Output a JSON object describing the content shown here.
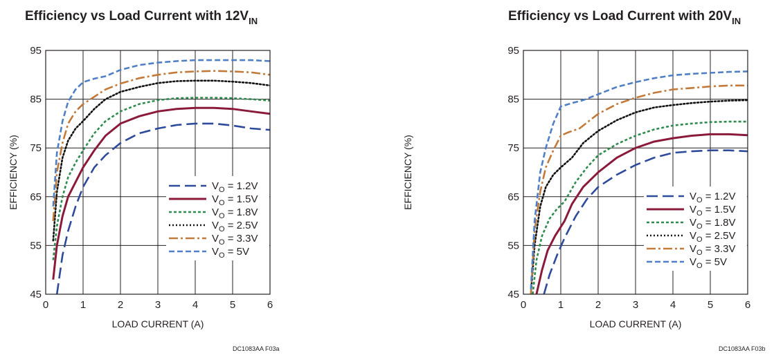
{
  "chart_data": [
    {
      "type": "line",
      "title_main": "Efficiency vs Load Current with 12V",
      "title_sub": "IN",
      "xlabel": "LOAD CURRENT (A)",
      "ylabel": "EFFICIENCY (%)",
      "xlim": [
        0,
        6
      ],
      "ylim": [
        45,
        95
      ],
      "xticks": [
        0,
        1,
        2,
        3,
        4,
        5,
        6
      ],
      "yticks": [
        45,
        55,
        65,
        75,
        85,
        95
      ],
      "grid": true,
      "legend_position": "bottom-right",
      "figure_code": "DC1083AA F03a",
      "series": [
        {
          "label_main": "V",
          "label_sub": "O",
          "label_rest": " = 1.2V",
          "color": "#2e4a9a",
          "dash": "long-dash",
          "points": [
            [
              0.3,
              45
            ],
            [
              0.45,
              53
            ],
            [
              0.6,
              58
            ],
            [
              0.8,
              63
            ],
            [
              1.0,
              67
            ],
            [
              1.3,
              71
            ],
            [
              1.6,
              73.5
            ],
            [
              2.0,
              76
            ],
            [
              2.5,
              78
            ],
            [
              3.0,
              79
            ],
            [
              3.5,
              79.7
            ],
            [
              4.0,
              80
            ],
            [
              4.5,
              80
            ],
            [
              5.0,
              79.6
            ],
            [
              5.5,
              79
            ],
            [
              6.0,
              78.7
            ]
          ]
        },
        {
          "label_main": "V",
          "label_sub": "O",
          "label_rest": " = 1.5V",
          "color": "#8b1a3a",
          "dash": "solid",
          "points": [
            [
              0.2,
              48
            ],
            [
              0.3,
              55
            ],
            [
              0.45,
              61
            ],
            [
              0.6,
              65
            ],
            [
              0.8,
              68
            ],
            [
              1.0,
              71
            ],
            [
              1.3,
              74.5
            ],
            [
              1.6,
              77.5
            ],
            [
              2.0,
              80
            ],
            [
              2.5,
              81.5
            ],
            [
              3.0,
              82.5
            ],
            [
              3.5,
              83
            ],
            [
              4.0,
              83.2
            ],
            [
              4.5,
              83.2
            ],
            [
              5.0,
              83
            ],
            [
              5.5,
              82.5
            ],
            [
              6.0,
              82
            ]
          ]
        },
        {
          "label_main": "V",
          "label_sub": "O",
          "label_rest": " = 1.8V",
          "color": "#2e8b4e",
          "dash": "short-dash",
          "points": [
            [
              0.2,
              52
            ],
            [
              0.3,
              59
            ],
            [
              0.45,
              65
            ],
            [
              0.6,
              69
            ],
            [
              0.8,
              72
            ],
            [
              1.0,
              74.5
            ],
            [
              1.3,
              78
            ],
            [
              1.6,
              80.5
            ],
            [
              2.0,
              82.5
            ],
            [
              2.5,
              84
            ],
            [
              3.0,
              84.8
            ],
            [
              3.5,
              85.2
            ],
            [
              4.0,
              85.3
            ],
            [
              4.5,
              85.3
            ],
            [
              5.0,
              85.2
            ],
            [
              5.5,
              85
            ],
            [
              6.0,
              84.7
            ]
          ]
        },
        {
          "label_main": "V",
          "label_sub": "O",
          "label_rest": " = 2.5V",
          "color": "#111111",
          "dash": "dot",
          "points": [
            [
              0.2,
              56
            ],
            [
              0.3,
              66
            ],
            [
              0.45,
              73
            ],
            [
              0.6,
              76.5
            ],
            [
              0.8,
              79
            ],
            [
              1.0,
              80.5
            ],
            [
              1.3,
              83
            ],
            [
              1.6,
              85
            ],
            [
              2.0,
              86.5
            ],
            [
              2.5,
              87.5
            ],
            [
              3.0,
              88.3
            ],
            [
              3.5,
              88.7
            ],
            [
              4.0,
              88.8
            ],
            [
              4.5,
              88.8
            ],
            [
              5.0,
              88.6
            ],
            [
              5.5,
              88.3
            ],
            [
              6.0,
              87.8
            ]
          ]
        },
        {
          "label_main": "V",
          "label_sub": "O",
          "label_rest": " = 3.3V",
          "color": "#c27a3a",
          "dash": "dash-dot",
          "points": [
            [
              0.2,
              60
            ],
            [
              0.3,
              70
            ],
            [
              0.45,
              76
            ],
            [
              0.6,
              80
            ],
            [
              0.8,
              82.5
            ],
            [
              1.0,
              84
            ],
            [
              1.3,
              85.5
            ],
            [
              1.6,
              87
            ],
            [
              2.0,
              88.2
            ],
            [
              2.5,
              89.3
            ],
            [
              3.0,
              90
            ],
            [
              3.5,
              90.5
            ],
            [
              4.0,
              90.7
            ],
            [
              4.5,
              90.8
            ],
            [
              5.0,
              90.7
            ],
            [
              5.5,
              90.5
            ],
            [
              6.0,
              90
            ]
          ]
        },
        {
          "label_main": "V",
          "label_sub": "O",
          "label_rest": " = 5V",
          "color": "#4f7fc4",
          "dash": "medium-dash",
          "points": [
            [
              0.2,
              63
            ],
            [
              0.3,
              74
            ],
            [
              0.45,
              80.5
            ],
            [
              0.6,
              84.5
            ],
            [
              0.8,
              87
            ],
            [
              1.0,
              88.5
            ],
            [
              1.3,
              89.2
            ],
            [
              1.6,
              89.7
            ],
            [
              2.0,
              91
            ],
            [
              2.5,
              92
            ],
            [
              3.0,
              92.5
            ],
            [
              3.5,
              92.8
            ],
            [
              4.0,
              93
            ],
            [
              4.5,
              93
            ],
            [
              5.0,
              93
            ],
            [
              5.5,
              93
            ],
            [
              6.0,
              92.8
            ]
          ]
        }
      ]
    },
    {
      "type": "line",
      "title_main": "Efficiency vs Load Current with 20V",
      "title_sub": "IN",
      "xlabel": "LOAD CURRENT (A)",
      "ylabel": "EFFICIENCY (%)",
      "xlim": [
        0,
        6
      ],
      "ylim": [
        45,
        95
      ],
      "xticks": [
        0,
        1,
        2,
        3,
        4,
        5,
        6
      ],
      "yticks": [
        45,
        55,
        65,
        75,
        85,
        95
      ],
      "grid": true,
      "legend_position": "bottom-right",
      "figure_code": "DC1083AA F03b",
      "series": [
        {
          "label_main": "V",
          "label_sub": "O",
          "label_rest": " = 1.2V",
          "color": "#2e4a9a",
          "dash": "long-dash",
          "points": [
            [
              0.55,
              45
            ],
            [
              0.7,
              49
            ],
            [
              0.9,
              53
            ],
            [
              1.1,
              56.5
            ],
            [
              1.4,
              61
            ],
            [
              1.7,
              64.5
            ],
            [
              2.0,
              67
            ],
            [
              2.5,
              69.5
            ],
            [
              3.0,
              71.5
            ],
            [
              3.5,
              73
            ],
            [
              4.0,
              74
            ],
            [
              4.5,
              74.3
            ],
            [
              5.0,
              74.5
            ],
            [
              5.5,
              74.5
            ],
            [
              6.0,
              74.3
            ]
          ]
        },
        {
          "label_main": "V",
          "label_sub": "O",
          "label_rest": " = 1.5V",
          "color": "#8b1a3a",
          "dash": "solid",
          "points": [
            [
              0.35,
              45
            ],
            [
              0.5,
              50
            ],
            [
              0.65,
              54
            ],
            [
              0.85,
              57
            ],
            [
              1.1,
              60
            ],
            [
              1.3,
              63.5
            ],
            [
              1.6,
              67
            ],
            [
              2.0,
              70
            ],
            [
              2.5,
              73
            ],
            [
              3.0,
              75
            ],
            [
              3.5,
              76.3
            ],
            [
              4.0,
              77
            ],
            [
              4.5,
              77.5
            ],
            [
              5.0,
              77.8
            ],
            [
              5.5,
              77.8
            ],
            [
              6.0,
              77.6
            ]
          ]
        },
        {
          "label_main": "V",
          "label_sub": "O",
          "label_rest": " = 1.8V",
          "color": "#2e8b4e",
          "dash": "short-dash",
          "points": [
            [
              0.25,
              45
            ],
            [
              0.35,
              52
            ],
            [
              0.5,
              57
            ],
            [
              0.7,
              60.5
            ],
            [
              0.9,
              62.5
            ],
            [
              1.1,
              64
            ],
            [
              1.4,
              68
            ],
            [
              1.7,
              71
            ],
            [
              2.0,
              73.5
            ],
            [
              2.5,
              75.8
            ],
            [
              3.0,
              77.5
            ],
            [
              3.5,
              78.8
            ],
            [
              4.0,
              79.6
            ],
            [
              4.5,
              80
            ],
            [
              5.0,
              80.3
            ],
            [
              5.5,
              80.4
            ],
            [
              6.0,
              80.4
            ]
          ]
        },
        {
          "label_main": "V",
          "label_sub": "O",
          "label_rest": " = 2.5V",
          "color": "#111111",
          "dash": "dot",
          "points": [
            [
              0.2,
              45
            ],
            [
              0.3,
              55
            ],
            [
              0.45,
              63
            ],
            [
              0.6,
              67
            ],
            [
              0.8,
              69.5
            ],
            [
              1.0,
              71
            ],
            [
              1.3,
              73
            ],
            [
              1.6,
              76
            ],
            [
              2.0,
              78.5
            ],
            [
              2.5,
              80.7
            ],
            [
              3.0,
              82.3
            ],
            [
              3.5,
              83.3
            ],
            [
              4.0,
              83.8
            ],
            [
              4.5,
              84.2
            ],
            [
              5.0,
              84.5
            ],
            [
              5.5,
              84.7
            ],
            [
              6.0,
              84.8
            ]
          ]
        },
        {
          "label_main": "V",
          "label_sub": "O",
          "label_rest": " = 3.3V",
          "color": "#c27a3a",
          "dash": "dash-dot",
          "points": [
            [
              0.2,
              45
            ],
            [
              0.3,
              58
            ],
            [
              0.45,
              66
            ],
            [
              0.6,
              71
            ],
            [
              0.8,
              74.5
            ],
            [
              1.0,
              77.5
            ],
            [
              1.2,
              78.2
            ],
            [
              1.5,
              79
            ],
            [
              2.0,
              82
            ],
            [
              2.5,
              84
            ],
            [
              3.0,
              85.3
            ],
            [
              3.5,
              86.3
            ],
            [
              4.0,
              87
            ],
            [
              4.5,
              87.3
            ],
            [
              5.0,
              87.6
            ],
            [
              5.5,
              87.8
            ],
            [
              6.0,
              87.8
            ]
          ]
        },
        {
          "label_main": "V",
          "label_sub": "O",
          "label_rest": " = 5V",
          "color": "#4f7fc4",
          "dash": "medium-dash",
          "points": [
            [
              0.2,
              46
            ],
            [
              0.3,
              60
            ],
            [
              0.45,
              70
            ],
            [
              0.6,
              75
            ],
            [
              0.8,
              80
            ],
            [
              1.0,
              83.5
            ],
            [
              1.3,
              84.2
            ],
            [
              1.6,
              84.8
            ],
            [
              2.0,
              86
            ],
            [
              2.5,
              87.5
            ],
            [
              3.0,
              88.5
            ],
            [
              3.5,
              89.3
            ],
            [
              4.0,
              89.9
            ],
            [
              4.5,
              90.2
            ],
            [
              5.0,
              90.4
            ],
            [
              5.5,
              90.6
            ],
            [
              6.0,
              90.7
            ]
          ]
        }
      ]
    }
  ]
}
